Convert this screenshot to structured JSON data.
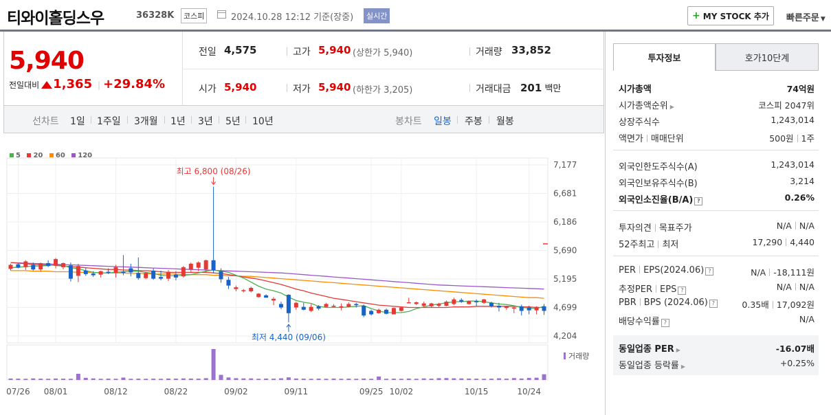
{
  "header": {
    "stock_name": "티와이홀딩스우",
    "stock_code": "36328K",
    "market": "코스피",
    "datetime": "2024.10.28 12:12",
    "basis": "기준(장중)",
    "realtime_badge": "실시간",
    "mystock_label": "MY STOCK 추가",
    "quick_order_label": "빠른주문"
  },
  "price": {
    "current": "5,940",
    "change_label": "전일대비",
    "change": "1,365",
    "change_pct": "+29.84%"
  },
  "summary": {
    "prev_label": "전일",
    "prev": "4,575",
    "high_label": "고가",
    "high": "5,940",
    "upper_limit": "(상한가 5,940)",
    "volume_label": "거래량",
    "volume": "33,852",
    "open_label": "시가",
    "open": "5,940",
    "low_label": "저가",
    "low": "5,940",
    "lower_limit": "(하한가 3,205)",
    "amount_label": "거래대금",
    "amount": "201",
    "amount_unit": "백만"
  },
  "chart_tabs": {
    "line_label": "선차트",
    "line_items": [
      "1일",
      "1주일",
      "3개월",
      "1년",
      "3년",
      "5년",
      "10년"
    ],
    "candle_label": "봉차트",
    "candle_items": [
      "일봉",
      "주봉",
      "월봉"
    ],
    "active": "일봉"
  },
  "chart_data": {
    "type": "candlestick",
    "ma_legend": [
      {
        "name": "5",
        "color": "#4caf50"
      },
      {
        "name": "20",
        "color": "#e53935"
      },
      {
        "name": "60",
        "color": "#fb8c00"
      },
      {
        "name": "120",
        "color": "#9c56c9"
      }
    ],
    "y_ticks": [
      "7,177",
      "6,681",
      "6,186",
      "5,690",
      "5,195",
      "4,699",
      "4,204"
    ],
    "ylim": [
      4204,
      7177
    ],
    "x_labels": [
      "07/26",
      "08/01",
      "08/12",
      "08/22",
      "09/02",
      "09/11",
      "09/25",
      "10/02",
      "10/15",
      "10/24"
    ],
    "max_annotation": "최고 6,800 (08/26)",
    "min_annotation": "최저 4,440 (09/06)",
    "volume_label": "거래량",
    "candles": [
      [
        5370,
        5460,
        5340,
        5440
      ],
      [
        5450,
        5470,
        5380,
        5390
      ],
      [
        5400,
        5520,
        5350,
        5500
      ],
      [
        5440,
        5480,
        5340,
        5360
      ],
      [
        5360,
        5480,
        5320,
        5470
      ],
      [
        5470,
        5520,
        5400,
        5420
      ],
      [
        5430,
        5560,
        5380,
        5540
      ],
      [
        5400,
        5480,
        5360,
        5470
      ],
      [
        5430,
        5480,
        5150,
        5200
      ],
      [
        5250,
        5460,
        5140,
        5420
      ],
      [
        5340,
        5380,
        5250,
        5280
      ],
      [
        5290,
        5330,
        5230,
        5260
      ],
      [
        5270,
        5340,
        5220,
        5330
      ],
      [
        5320,
        5380,
        5280,
        5300
      ],
      [
        5300,
        5440,
        5220,
        5400
      ],
      [
        5320,
        5610,
        5260,
        5300
      ],
      [
        5380,
        5460,
        5240,
        5310
      ],
      [
        5300,
        5570,
        5180,
        5210
      ],
      [
        5210,
        5320,
        5190,
        5300
      ],
      [
        5340,
        5380,
        5180,
        5200
      ],
      [
        5230,
        5340,
        5170,
        5200
      ],
      [
        5200,
        5350,
        5160,
        5320
      ],
      [
        5270,
        5330,
        5170,
        5220
      ],
      [
        5240,
        5420,
        5220,
        5400
      ],
      [
        5360,
        5480,
        5300,
        5460
      ],
      [
        5390,
        5500,
        5330,
        5480
      ],
      [
        5360,
        5530,
        5300,
        5520
      ],
      [
        5520,
        6800,
        5300,
        5350
      ],
      [
        5330,
        5380,
        5130,
        5190
      ],
      [
        5180,
        5230,
        5020,
        5080
      ],
      [
        5020,
        5080,
        4980,
        5050
      ],
      [
        4990,
        5020,
        4960,
        5000
      ],
      [
        4980,
        5060,
        4960,
        5040
      ],
      [
        4880,
        4950,
        4870,
        4940
      ],
      [
        4910,
        4930,
        4870,
        4870
      ],
      [
        4820,
        4880,
        4740,
        4850
      ],
      [
        4760,
        4800,
        4670,
        4700
      ],
      [
        4920,
        4930,
        4440,
        4600
      ],
      [
        4700,
        4800,
        4660,
        4780
      ],
      [
        4710,
        4780,
        4650,
        4660
      ],
      [
        4640,
        4760,
        4620,
        4710
      ],
      [
        4720,
        4740,
        4650,
        4680
      ],
      [
        4710,
        4780,
        4700,
        4760
      ],
      [
        4710,
        4760,
        4700,
        4730
      ],
      [
        4700,
        4770,
        4650,
        4720
      ],
      [
        4710,
        4790,
        4700,
        4760
      ],
      [
        4760,
        4780,
        4700,
        4740
      ],
      [
        4730,
        4750,
        4530,
        4560
      ],
      [
        4640,
        4660,
        4560,
        4580
      ],
      [
        4600,
        4680,
        4590,
        4660
      ],
      [
        4660,
        4680,
        4580,
        4590
      ],
      [
        4580,
        4700,
        4580,
        4690
      ],
      [
        4640,
        4710,
        4630,
        4700
      ],
      [
        4780,
        4870,
        4770,
        4790
      ],
      [
        4760,
        4800,
        4740,
        4790
      ],
      [
        4730,
        4800,
        4700,
        4770
      ],
      [
        4720,
        4780,
        4700,
        4770
      ],
      [
        4730,
        4780,
        4710,
        4760
      ],
      [
        4730,
        4820,
        4720,
        4800
      ],
      [
        4760,
        4870,
        4740,
        4840
      ],
      [
        4830,
        4860,
        4780,
        4800
      ],
      [
        4760,
        4820,
        4750,
        4810
      ],
      [
        4810,
        4840,
        4720,
        4790
      ],
      [
        4780,
        4850,
        4760,
        4840
      ],
      [
        4780,
        4800,
        4700,
        4720
      ],
      [
        4730,
        4780,
        4630,
        4700
      ],
      [
        4690,
        4730,
        4660,
        4720
      ],
      [
        4680,
        4720,
        4600,
        4700
      ],
      [
        4720,
        4750,
        4560,
        4640
      ],
      [
        4700,
        4730,
        4580,
        4650
      ],
      [
        4650,
        4720,
        4580,
        4710
      ],
      [
        4720,
        4760,
        4570,
        4640
      ]
    ],
    "ma5": [
      5390,
      5400,
      5410,
      5420,
      5420,
      5430,
      5440,
      5430,
      5390,
      5370,
      5340,
      5310,
      5300,
      5300,
      5310,
      5320,
      5330,
      5330,
      5310,
      5290,
      5260,
      5250,
      5250,
      5260,
      5270,
      5300,
      5330,
      5350,
      5330,
      5310,
      5260,
      5210,
      5140,
      5070,
      5020,
      4990,
      4950,
      4880,
      4820,
      4790,
      4770,
      4720,
      4700,
      4700,
      4700,
      4710,
      4720,
      4730,
      4680,
      4640,
      4610,
      4610,
      4610,
      4630,
      4680,
      4710,
      4740,
      4760,
      4780,
      4800,
      4800,
      4810,
      4810,
      4800,
      4780,
      4760,
      4750,
      4730,
      4700,
      4690,
      4680,
      4720
    ],
    "ma20": [
      5480,
      5470,
      5460,
      5450,
      5440,
      5440,
      5430,
      5420,
      5410,
      5400,
      5390,
      5380,
      5370,
      5360,
      5360,
      5350,
      5350,
      5340,
      5340,
      5330,
      5320,
      5310,
      5310,
      5310,
      5310,
      5310,
      5310,
      5300,
      5290,
      5270,
      5250,
      5230,
      5210,
      5190,
      5160,
      5130,
      5100,
      5060,
      5020,
      4990,
      4950,
      4920,
      4890,
      4860,
      4840,
      4820,
      4800,
      4780,
      4760,
      4740,
      4730,
      4720,
      4710,
      4700,
      4700,
      4700,
      4700,
      4700,
      4700,
      4710,
      4710,
      4710,
      4720,
      4720,
      4720,
      4720,
      4720,
      4720,
      4710,
      4710,
      4700,
      4700
    ],
    "ma60": [
      5340,
      5340,
      5340,
      5330,
      5330,
      5330,
      5320,
      5320,
      5320,
      5310,
      5310,
      5310,
      5300,
      5300,
      5300,
      5300,
      5290,
      5290,
      5290,
      5280,
      5280,
      5280,
      5280,
      5270,
      5270,
      5270,
      5270,
      5260,
      5260,
      5250,
      5250,
      5240,
      5240,
      5230,
      5220,
      5210,
      5200,
      5190,
      5180,
      5170,
      5160,
      5150,
      5140,
      5130,
      5120,
      5110,
      5100,
      5090,
      5080,
      5070,
      5060,
      5050,
      5040,
      5030,
      5020,
      5010,
      5000,
      4990,
      4980,
      4970,
      4960,
      4950,
      4940,
      4930,
      4920,
      4910,
      4900,
      4890,
      4880,
      4870,
      4870,
      4860
    ],
    "ma120": [
      5480,
      5475,
      5470,
      5465,
      5460,
      5455,
      5450,
      5445,
      5440,
      5435,
      5430,
      5425,
      5420,
      5415,
      5410,
      5405,
      5400,
      5395,
      5390,
      5385,
      5380,
      5375,
      5370,
      5365,
      5360,
      5355,
      5350,
      5345,
      5340,
      5335,
      5330,
      5325,
      5320,
      5315,
      5310,
      5305,
      5300,
      5290,
      5280,
      5270,
      5260,
      5250,
      5240,
      5230,
      5220,
      5210,
      5200,
      5190,
      5180,
      5170,
      5160,
      5150,
      5140,
      5130,
      5120,
      5110,
      5100,
      5090,
      5085,
      5080,
      5075,
      5070,
      5065,
      5060,
      5055,
      5050,
      5045,
      5040,
      5035,
      5030,
      5025,
      5020
    ],
    "volumes": [
      120,
      110,
      100,
      130,
      110,
      100,
      120,
      110,
      100,
      520,
      180,
      130,
      100,
      110,
      100,
      200,
      100,
      110,
      100,
      110,
      100,
      120,
      110,
      130,
      120,
      110,
      150,
      2600,
      430,
      210,
      150,
      130,
      130,
      100,
      120,
      110,
      140,
      220,
      120,
      110,
      100,
      110,
      100,
      120,
      100,
      110,
      100,
      120,
      100,
      290,
      100,
      110,
      100,
      120,
      100,
      130,
      110,
      150,
      160,
      140,
      130,
      120,
      110,
      100,
      110,
      140,
      110,
      160,
      120,
      170,
      190,
      480
    ],
    "marker_y": 5805
  },
  "right_panel": {
    "tabs": [
      "투자정보",
      "호가10단계"
    ],
    "market_cap_label": "시가총액",
    "market_cap": "74억원",
    "cap_rank_label": "시가총액순위",
    "cap_rank": "코스피 2047위",
    "shares_label": "상장주식수",
    "shares": "1,243,014",
    "par_label": "액면가",
    "unit_label": "매매단위",
    "par": "500원",
    "unit": "1주",
    "foreign_limit_label": "외국인한도주식수(A)",
    "foreign_limit": "1,243,014",
    "foreign_hold_label": "외국인보유주식수(B)",
    "foreign_hold": "3,214",
    "foreign_ratio_label": "외국인소진율(B/A)",
    "foreign_ratio": "0.26%",
    "opinion_label": "투자의견",
    "target_label": "목표주가",
    "opinion": "N/A",
    "target": "N/A",
    "w52_high_label": "52주최고",
    "w52_low_label": "최저",
    "w52_high": "17,290",
    "w52_low": "4,440",
    "per_label": "PER",
    "eps_label": "EPS(2024.06)",
    "per": "N/A",
    "eps": "-18,111원",
    "est_per_label": "추정PER",
    "est_eps_label": "EPS",
    "est_per": "N/A",
    "est_eps": "N/A",
    "pbr_label": "PBR",
    "bps_label": "BPS (2024.06)",
    "pbr": "0.35배",
    "bps": "17,092원",
    "div_label": "배당수익률",
    "div": "N/A",
    "peer_per_label": "동일업종 PER",
    "peer_per": "-16.07배",
    "peer_change_label": "동일업종 등락률",
    "peer_change": "+0.25%"
  }
}
